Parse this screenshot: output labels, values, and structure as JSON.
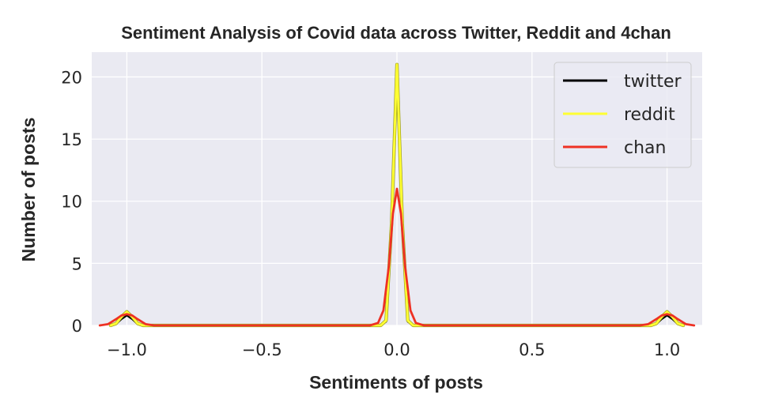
{
  "chart_data": {
    "type": "line",
    "title": "Sentiment Analysis of Covid data across Twitter, Reddit and 4chan",
    "xlabel": "Sentiments of posts",
    "ylabel": "Number of posts",
    "xlim": [
      -1.13,
      1.13
    ],
    "ylim": [
      0,
      22
    ],
    "xticks": [
      -1.0,
      -0.5,
      0.0,
      0.5,
      1.0
    ],
    "xtick_labels": [
      "−1.0",
      "−0.5",
      "0.0",
      "0.5",
      "1.0"
    ],
    "yticks": [
      0,
      5,
      10,
      15,
      20
    ],
    "ytick_labels": [
      "0",
      "5",
      "10",
      "15",
      "20"
    ],
    "grid": true,
    "background": "#eaeaf2",
    "legend_position": "top-right",
    "series": [
      {
        "name": "twitter",
        "color": "#000000",
        "x": [
          -1.06,
          -1.04,
          -1.02,
          -1.0,
          -0.98,
          -0.96,
          -0.94,
          -0.06,
          -0.04,
          -0.02,
          0.0,
          0.02,
          0.04,
          0.06,
          0.94,
          0.96,
          0.98,
          1.0,
          1.02,
          1.04,
          1.06
        ],
        "y": [
          0,
          0.1,
          0.5,
          0.8,
          0.5,
          0.1,
          0,
          0,
          0.3,
          8.5,
          21,
          8.5,
          0.3,
          0,
          0,
          0.1,
          0.5,
          0.8,
          0.5,
          0.1,
          0
        ]
      },
      {
        "name": "reddit",
        "color": "#ffff33",
        "x": [
          -1.06,
          -1.04,
          -1.02,
          -1.0,
          -0.98,
          -0.96,
          -0.94,
          -0.06,
          -0.04,
          -0.02,
          0.0,
          0.02,
          0.04,
          0.06,
          0.94,
          0.96,
          0.98,
          1.0,
          1.02,
          1.04,
          1.06
        ],
        "y": [
          0,
          0.15,
          0.7,
          1.1,
          0.7,
          0.15,
          0,
          0,
          0.4,
          8.2,
          21,
          8.2,
          0.4,
          0,
          0,
          0.15,
          0.7,
          1.1,
          0.7,
          0.15,
          0
        ]
      },
      {
        "name": "chan",
        "color": "#ee3124",
        "x": [
          -1.1,
          -1.07,
          -1.04,
          -1.02,
          -1.0,
          -0.98,
          -0.96,
          -0.93,
          -0.9,
          -0.1,
          -0.07,
          -0.05,
          -0.03,
          -0.015,
          0.0,
          0.015,
          0.03,
          0.05,
          0.07,
          0.1,
          0.9,
          0.93,
          0.96,
          0.98,
          1.0,
          1.02,
          1.04,
          1.07,
          1.1
        ],
        "y": [
          0,
          0.1,
          0.5,
          0.8,
          0.9,
          0.8,
          0.5,
          0.1,
          0,
          0,
          0.2,
          1.2,
          4.8,
          9,
          11,
          9,
          4.8,
          1.2,
          0.2,
          0,
          0,
          0.1,
          0.5,
          0.8,
          0.9,
          0.8,
          0.5,
          0.1,
          0
        ]
      }
    ]
  }
}
